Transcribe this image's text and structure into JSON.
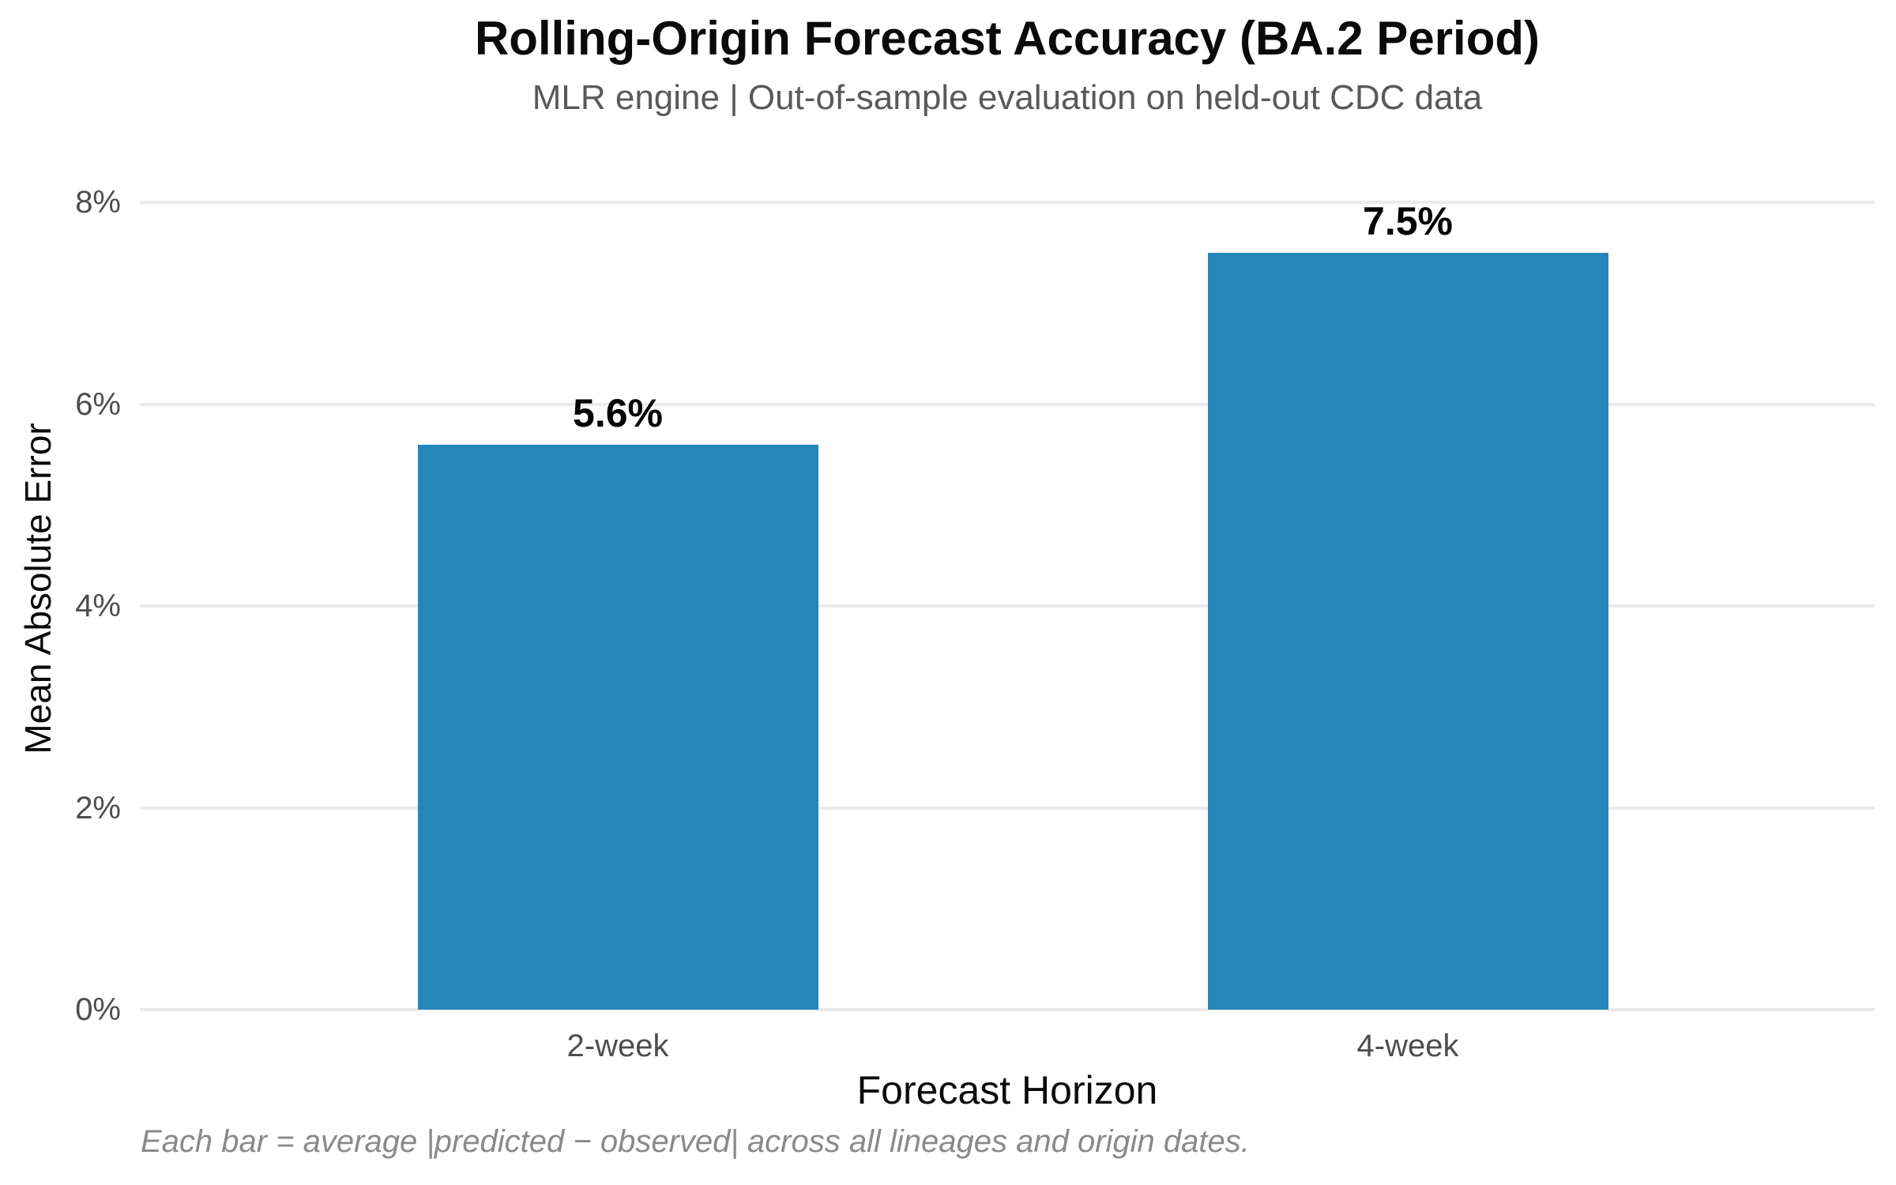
{
  "chart_data": {
    "type": "bar",
    "title": "Rolling-Origin Forecast Accuracy (BA.2 Period)",
    "subtitle": "MLR engine | Out-of-sample evaluation on held-out CDC data",
    "categories": [
      "2-week",
      "4-week"
    ],
    "values": [
      5.6,
      7.5
    ],
    "value_labels": [
      "5.6%",
      "7.5%"
    ],
    "xlabel": "Forecast Horizon",
    "ylabel": "Mean Absolute Error",
    "ylim": [
      0,
      8
    ],
    "yticks": [
      0,
      2,
      4,
      6,
      8
    ],
    "ytick_labels": [
      "0%",
      "2%",
      "4%",
      "6%",
      "8%"
    ],
    "grid": true,
    "legend": "none",
    "caption": "Each bar = average |predicted − observed| across all lineages and origin dates.",
    "colors": {
      "bar": "#2685b9",
      "gridline": "#ebebeb",
      "title": "#0a0a0a",
      "subtitle": "#595959",
      "tick_label": "#4d4d4d",
      "axis_title": "#0a0a0a",
      "caption": "#8a8a8a",
      "background": "#ffffff"
    }
  }
}
